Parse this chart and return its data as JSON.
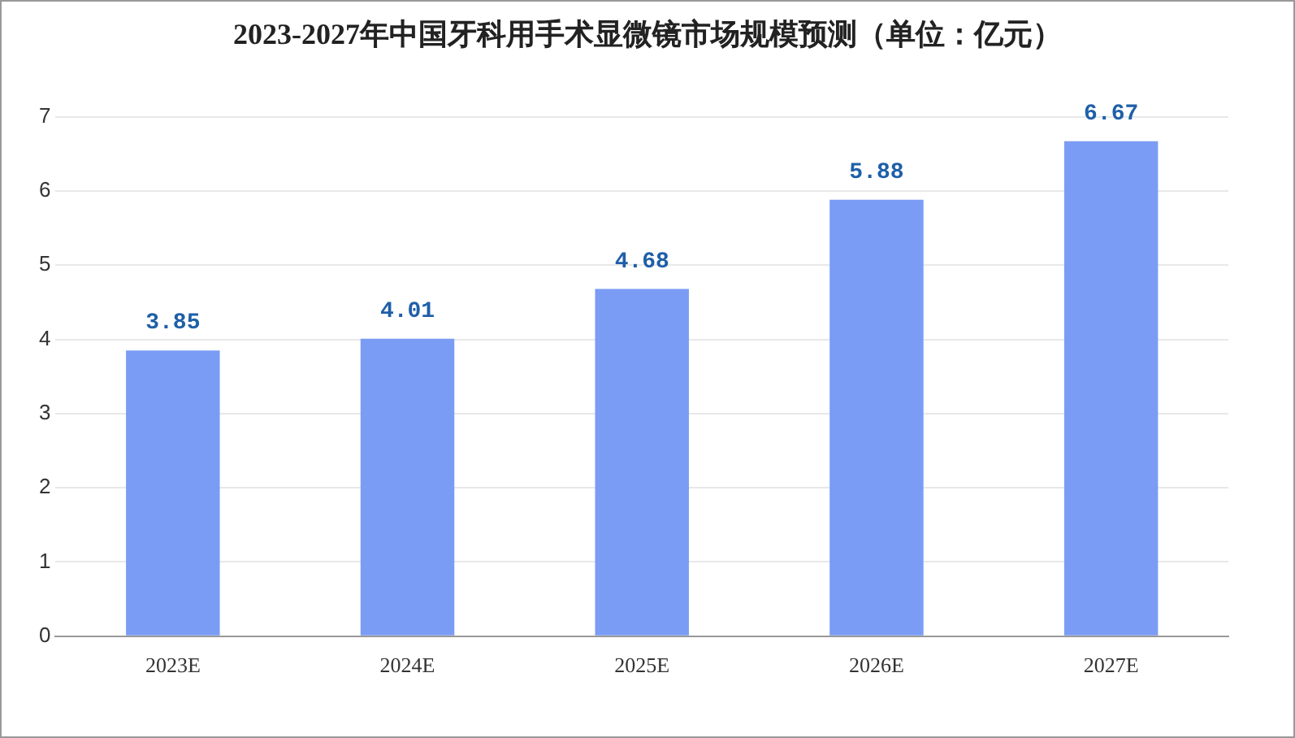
{
  "chart_data": {
    "type": "bar",
    "title": "2023-2027年中国牙科用手术显微镜市场规模预测（单位：亿元）",
    "categories": [
      "2023E",
      "2024E",
      "2025E",
      "2026E",
      "2027E"
    ],
    "values": [
      3.85,
      4.01,
      4.68,
      5.88,
      6.67
    ],
    "color": "#7b9cf5",
    "ylim": [
      0,
      7
    ],
    "yticks": [
      0,
      1,
      2,
      3,
      4,
      5,
      6,
      7
    ],
    "grid": "y",
    "data_labels": true
  }
}
